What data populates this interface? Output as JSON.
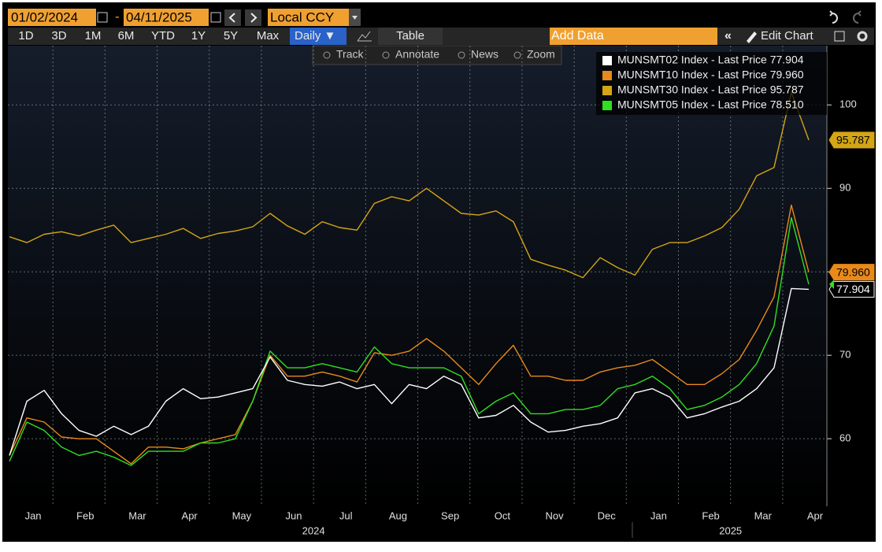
{
  "toolbar": {
    "start_date": "01/02/2024",
    "date_separator": "-",
    "end_date": "04/11/2025",
    "currency": "Local CCY",
    "periods": [
      "1D",
      "3D",
      "1M",
      "6M",
      "YTD",
      "1Y",
      "5Y",
      "Max"
    ],
    "frequency": "Daily ▼",
    "table": "Table",
    "add_data": "Add Data",
    "edit_chart": "Edit Chart",
    "tools": [
      "Track",
      "Annotate",
      "News",
      "Zoom"
    ]
  },
  "chart_data": {
    "type": "line",
    "categories": [
      null,
      "Jan",
      null,
      null,
      "Feb",
      null,
      null,
      "Mar",
      null,
      null,
      "Apr",
      null,
      null,
      "May",
      null,
      null,
      "Jun",
      null,
      null,
      "Jul",
      null,
      null,
      "Aug",
      null,
      null,
      "Sep",
      null,
      null,
      "Oct",
      null,
      null,
      "Nov",
      null,
      null,
      "Dec",
      null,
      null,
      "Jan",
      null,
      null,
      "Feb",
      null,
      null,
      "Mar",
      null,
      null,
      "Apr"
    ],
    "year_labels": [
      "2024",
      "2025"
    ],
    "ylim": [
      51.9,
      107.1
    ],
    "yticks": [
      60,
      70,
      80,
      90,
      100
    ],
    "grid": true,
    "series": [
      {
        "name": "MUNSMT02 Index - Last Price 77.904",
        "color": "#ffffff",
        "last_price": {
          "value": 77.904,
          "label": "77.904"
        },
        "values": [
          58.0,
          64.5,
          65.8,
          63.0,
          61.0,
          60.3,
          61.5,
          60.5,
          61.5,
          64.5,
          66.0,
          64.8,
          65.0,
          65.5,
          66.0,
          69.8,
          67.0,
          66.5,
          66.3,
          66.8,
          66.0,
          66.5,
          64.2,
          66.5,
          66.0,
          67.5,
          66.5,
          62.5,
          62.8,
          64.0,
          62.0,
          60.8,
          61.0,
          61.5,
          61.8,
          62.5,
          65.5,
          66.0,
          65.0,
          62.5,
          63.0,
          63.8,
          64.5,
          66.0,
          68.5,
          78.0,
          77.904
        ]
      },
      {
        "name": "MUNSMT10 Index - Last Price 79.960",
        "color": "#e8891a",
        "last_price": {
          "value": 79.96,
          "label": "79.960"
        },
        "values": [
          58.0,
          62.5,
          62.0,
          60.2,
          60.0,
          60.0,
          58.5,
          57.0,
          59.0,
          59.0,
          58.8,
          59.5,
          60.0,
          60.5,
          64.5,
          70.0,
          67.5,
          67.5,
          68.0,
          67.5,
          66.8,
          70.3,
          70.0,
          70.5,
          72.0,
          70.5,
          68.5,
          66.5,
          69.0,
          71.2,
          67.5,
          67.5,
          67.0,
          67.0,
          68.0,
          68.5,
          68.8,
          69.5,
          68.0,
          66.5,
          66.5,
          67.8,
          69.5,
          73.0,
          77.0,
          88.0,
          79.96
        ]
      },
      {
        "name": "MUNSMT30 Index - Last Price 95.787",
        "color": "#d4a514",
        "last_price": {
          "value": 95.787,
          "label": "95.787"
        },
        "values": [
          84.2,
          83.5,
          84.5,
          84.8,
          84.3,
          85.0,
          85.6,
          83.5,
          84.0,
          84.5,
          85.2,
          84.0,
          84.6,
          84.9,
          85.4,
          87.0,
          85.5,
          84.5,
          86.0,
          85.3,
          85.0,
          88.2,
          89.0,
          88.5,
          90.0,
          88.5,
          87.0,
          86.8,
          87.3,
          86.0,
          81.5,
          80.8,
          80.2,
          79.3,
          81.7,
          80.5,
          79.6,
          82.7,
          83.5,
          83.5,
          84.3,
          85.3,
          87.5,
          91.5,
          92.5,
          101.5,
          95.787
        ]
      },
      {
        "name": "MUNSMT05 Index - Last Price 78.510",
        "color": "#2ee01e",
        "values": [
          57.3,
          62.0,
          61.0,
          59.0,
          58.0,
          58.5,
          57.8,
          56.8,
          58.5,
          58.5,
          58.5,
          59.5,
          59.5,
          60.0,
          64.5,
          70.5,
          68.5,
          68.5,
          69.0,
          68.5,
          68.0,
          71.0,
          69.0,
          68.5,
          68.5,
          68.5,
          67.5,
          63.0,
          64.5,
          65.5,
          63.0,
          63.0,
          63.5,
          63.5,
          64.0,
          66.0,
          66.5,
          67.5,
          66.0,
          63.5,
          64.0,
          65.0,
          66.5,
          69.0,
          73.5,
          86.5,
          78.51
        ]
      }
    ]
  }
}
